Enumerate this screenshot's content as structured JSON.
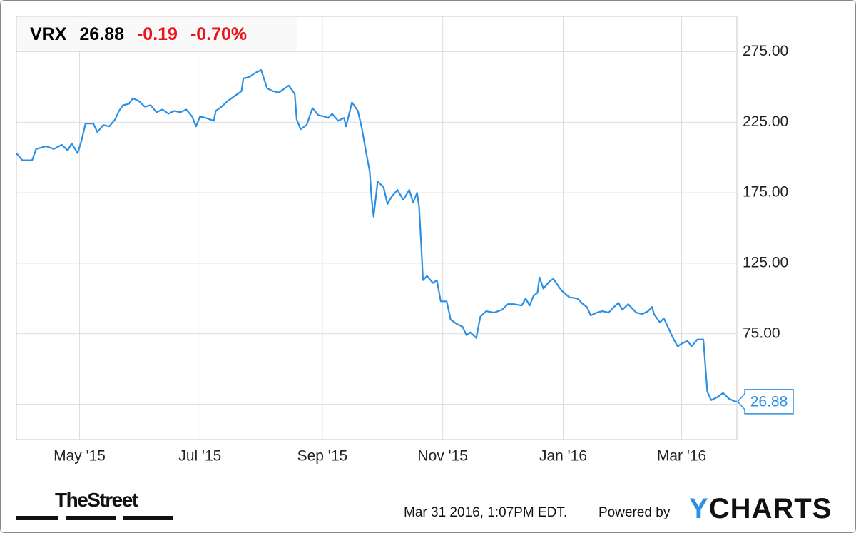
{
  "chart_data": {
    "type": "line",
    "quote": {
      "symbol": "VRX",
      "change": -0.19,
      "change_percent": {
        "value": -0.7,
        "label": "-0.70%"
      }
    },
    "x": [
      0,
      3,
      8,
      10,
      15,
      19,
      23,
      26,
      28,
      31,
      33,
      35,
      39,
      41,
      44,
      47,
      50,
      52,
      54,
      57,
      59,
      62,
      65,
      68,
      71,
      74,
      77,
      80,
      83,
      86,
      89,
      91,
      93,
      96,
      100,
      101,
      104,
      107,
      110,
      114,
      115,
      118,
      121,
      124,
      127,
      130,
      133,
      138,
      141,
      142,
      144,
      147,
      150,
      153,
      156,
      158,
      160,
      163,
      166,
      167,
      170,
      173,
      175,
      177,
      179,
      180,
      181,
      183,
      186,
      188,
      190,
      193,
      196,
      199,
      201,
      203,
      204,
      205,
      206,
      208,
      211,
      213,
      215,
      218,
      220,
      223,
      226,
      228,
      230,
      233,
      235,
      238,
      242,
      246,
      249,
      252,
      256,
      258,
      260,
      262,
      264,
      265,
      267,
      270,
      272,
      276,
      280,
      284,
      285,
      287,
      289,
      291,
      294,
      297,
      300,
      302,
      305,
      307,
      310,
      312,
      314,
      317,
      320,
      322,
      323,
      326,
      328,
      331,
      333,
      335,
      337,
      340,
      342,
      345,
      348,
      350,
      352,
      355,
      358,
      361,
      364,
      365
    ],
    "values": [
      203,
      198,
      198,
      206,
      208,
      206,
      209,
      205,
      210,
      203,
      212,
      224,
      224,
      218,
      223,
      222,
      227,
      233,
      237,
      238,
      242,
      240,
      236,
      237,
      232,
      234,
      231,
      233,
      232,
      234,
      229,
      222,
      229,
      228,
      226,
      233,
      236,
      240,
      243,
      247,
      256,
      257,
      260,
      262,
      249,
      247,
      246,
      251,
      245,
      227,
      220,
      223,
      235,
      230,
      229,
      228,
      231,
      226,
      228,
      222,
      239,
      233,
      221,
      205,
      190,
      170,
      158,
      183,
      179,
      167,
      172,
      177,
      170,
      177,
      168,
      175,
      165,
      140,
      113,
      116,
      111,
      113,
      98,
      98,
      85,
      82,
      80,
      74,
      76,
      72,
      87,
      91,
      90,
      92,
      96,
      96,
      95,
      100,
      95,
      102,
      104,
      115,
      107,
      112,
      114,
      106,
      101,
      100,
      99,
      96,
      94,
      88,
      90,
      91,
      90,
      93,
      97,
      92,
      96,
      93,
      90,
      89,
      91,
      94,
      89,
      83,
      86,
      77,
      71,
      66,
      68,
      70,
      66,
      71,
      71,
      34,
      28,
      30,
      33,
      29,
      27,
      26.88
    ],
    "color": "#2b8fe3",
    "xlim": [
      0,
      365
    ],
    "xticks": [
      {
        "value": 32,
        "label": "May '15"
      },
      {
        "value": 93,
        "label": "Jul '15"
      },
      {
        "value": 155,
        "label": "Sep '15"
      },
      {
        "value": 216,
        "label": "Nov '15"
      },
      {
        "value": 277,
        "label": "Jan '16"
      },
      {
        "value": 337,
        "label": "Mar '16"
      }
    ],
    "ylim": [
      0,
      300
    ],
    "yticks": [
      {
        "value": 25,
        "label": null
      },
      {
        "value": 75,
        "label": "75.00"
      },
      {
        "value": 125,
        "label": "125.00"
      },
      {
        "value": 175,
        "label": "175.00"
      },
      {
        "value": 225,
        "label": "225.00"
      },
      {
        "value": 275,
        "label": "275.00"
      }
    ],
    "grid": true,
    "footer": {
      "source": "TheStreet",
      "timestamp": "Mar 31 2016, 1:07PM EDT.",
      "powered": "Powered by",
      "brand": "YCHARTS"
    }
  }
}
